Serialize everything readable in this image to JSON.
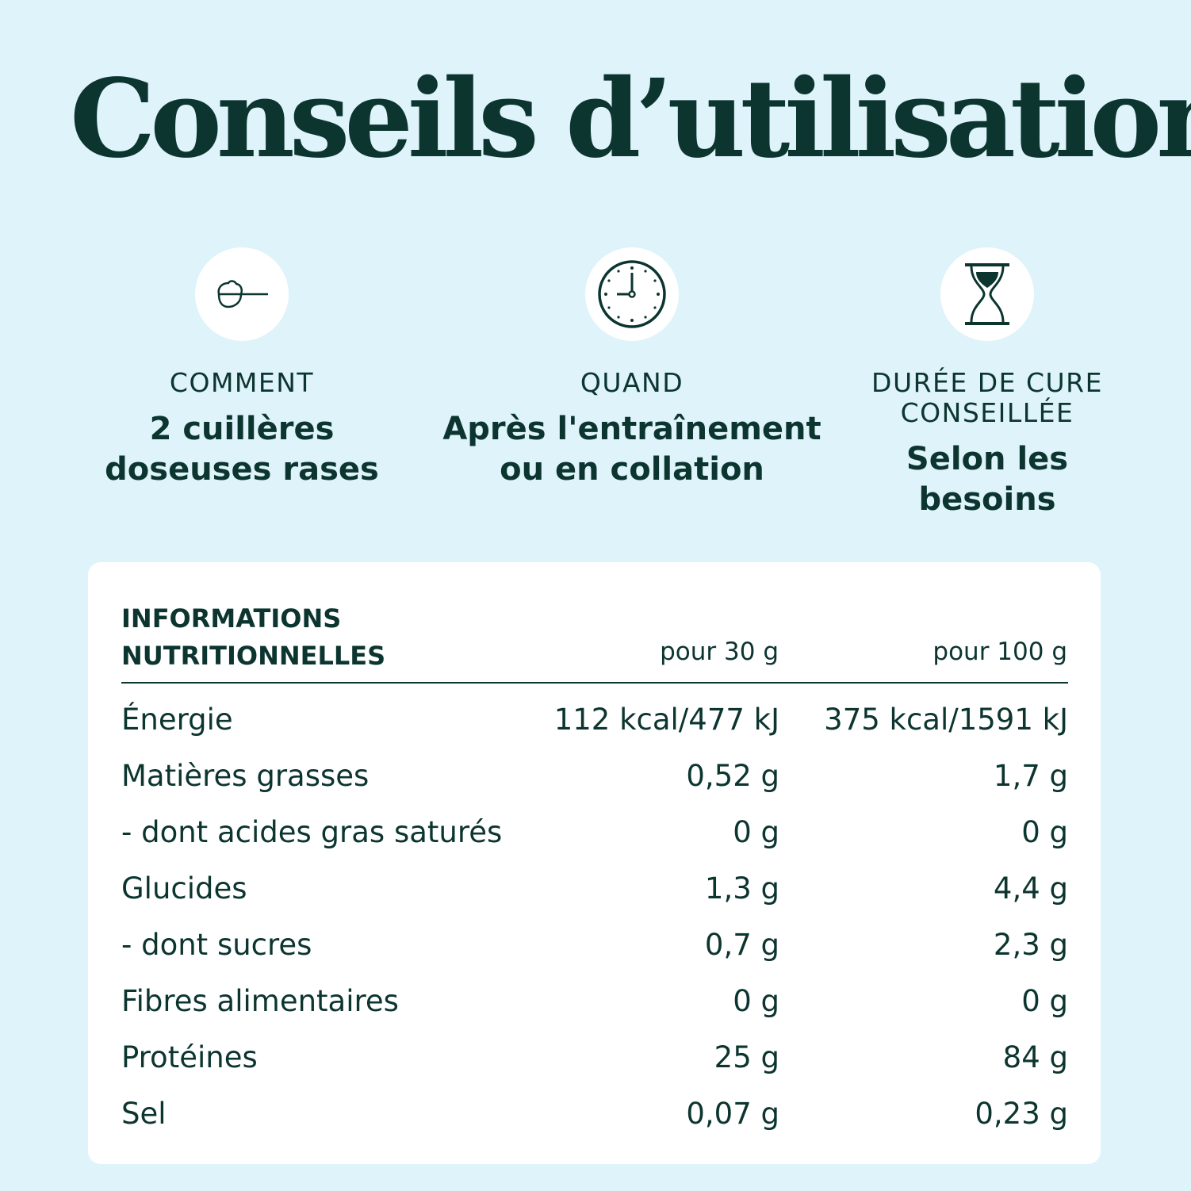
{
  "title": "Conseils d’utilisation",
  "sections": [
    {
      "icon": "measuring-scoop-icon",
      "label": "COMMENT",
      "value_lines": [
        "2 cuillères",
        "doseuses rases"
      ]
    },
    {
      "icon": "clock-icon",
      "label": "QUAND",
      "value_lines": [
        "Après l'entraînement",
        "ou en collation"
      ]
    },
    {
      "icon": "hourglass-icon",
      "label_lines": [
        "DURÉE DE CURE",
        "CONSEILLÉE"
      ],
      "value_lines": [
        "Selon les",
        "besoins"
      ]
    }
  ],
  "nutrition": {
    "header_lines": [
      "INFORMATIONS",
      "NUTRITIONNELLES"
    ],
    "columns": [
      "pour 30 g",
      "pour 100 g"
    ],
    "rows": [
      [
        "Énergie",
        "112 kcal/477 kJ",
        "375 kcal/1591 kJ"
      ],
      [
        "Matières grasses",
        "0,52 g",
        "1,7 g"
      ],
      [
        "- dont acides gras saturés",
        "0 g",
        "0 g"
      ],
      [
        "Glucides",
        "1,3 g",
        "4,4 g"
      ],
      [
        "- dont sucres",
        "0,7 g",
        "2,3 g"
      ],
      [
        "Fibres alimentaires",
        "0 g",
        "0 g"
      ],
      [
        "Protéines",
        "25 g",
        "84 g"
      ],
      [
        "Sel",
        "0,07 g",
        "0,23 g"
      ]
    ]
  },
  "colors": {
    "background": "#def3fa",
    "text": "#0c3530",
    "card": "#ffffff"
  }
}
